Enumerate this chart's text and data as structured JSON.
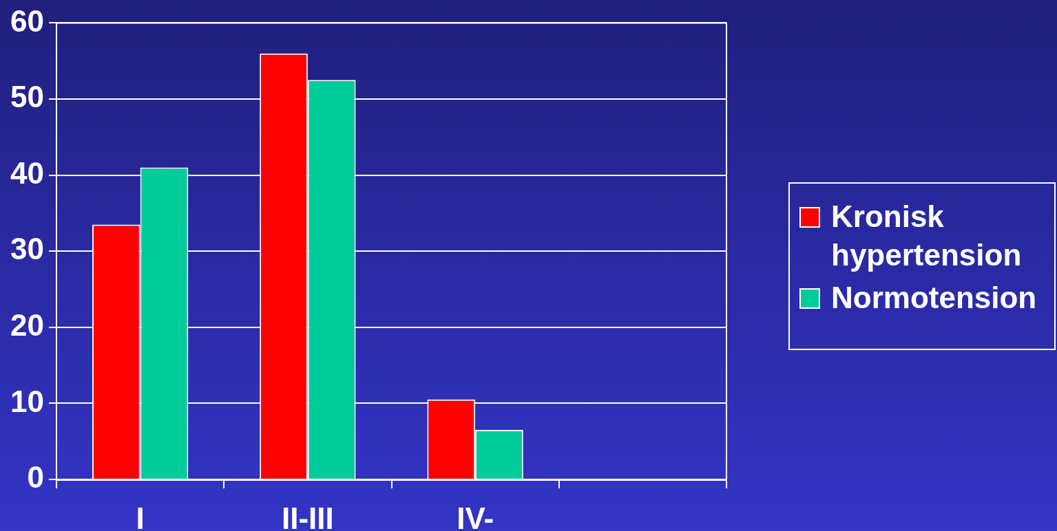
{
  "chart_data": {
    "type": "bar",
    "categories": [
      "I",
      "II-III",
      "IV-",
      null
    ],
    "series": [
      {
        "name": "Kronisk hypertension",
        "color": "#ff0000",
        "values": [
          33.5,
          56,
          10.5,
          null
        ]
      },
      {
        "name": "Normotension",
        "color": "#00cc99",
        "values": [
          41,
          52.5,
          6.5,
          null
        ]
      }
    ],
    "ylim": [
      0,
      60
    ],
    "yticks": [
      0,
      10,
      20,
      30,
      40,
      50,
      60
    ],
    "grid": "y",
    "legend": "right"
  }
}
